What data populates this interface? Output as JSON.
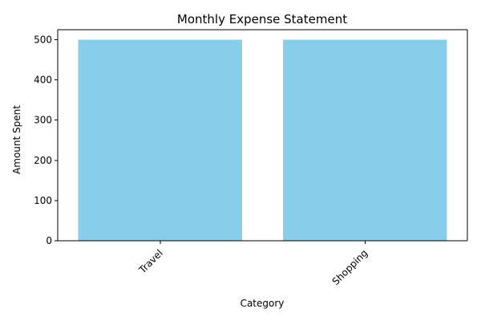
{
  "chart_data": {
    "type": "bar",
    "title": "Monthly Expense Statement",
    "xlabel": "Category",
    "ylabel": "Amount Spent",
    "categories": [
      "Travel",
      "Shopping"
    ],
    "values": [
      500,
      500
    ],
    "ylim": [
      0,
      525
    ],
    "yticks": [
      0,
      100,
      200,
      300,
      400,
      500
    ],
    "xtick_rotation": 45,
    "bar_color": "#87ceeb",
    "grid": false,
    "legend": "none"
  }
}
